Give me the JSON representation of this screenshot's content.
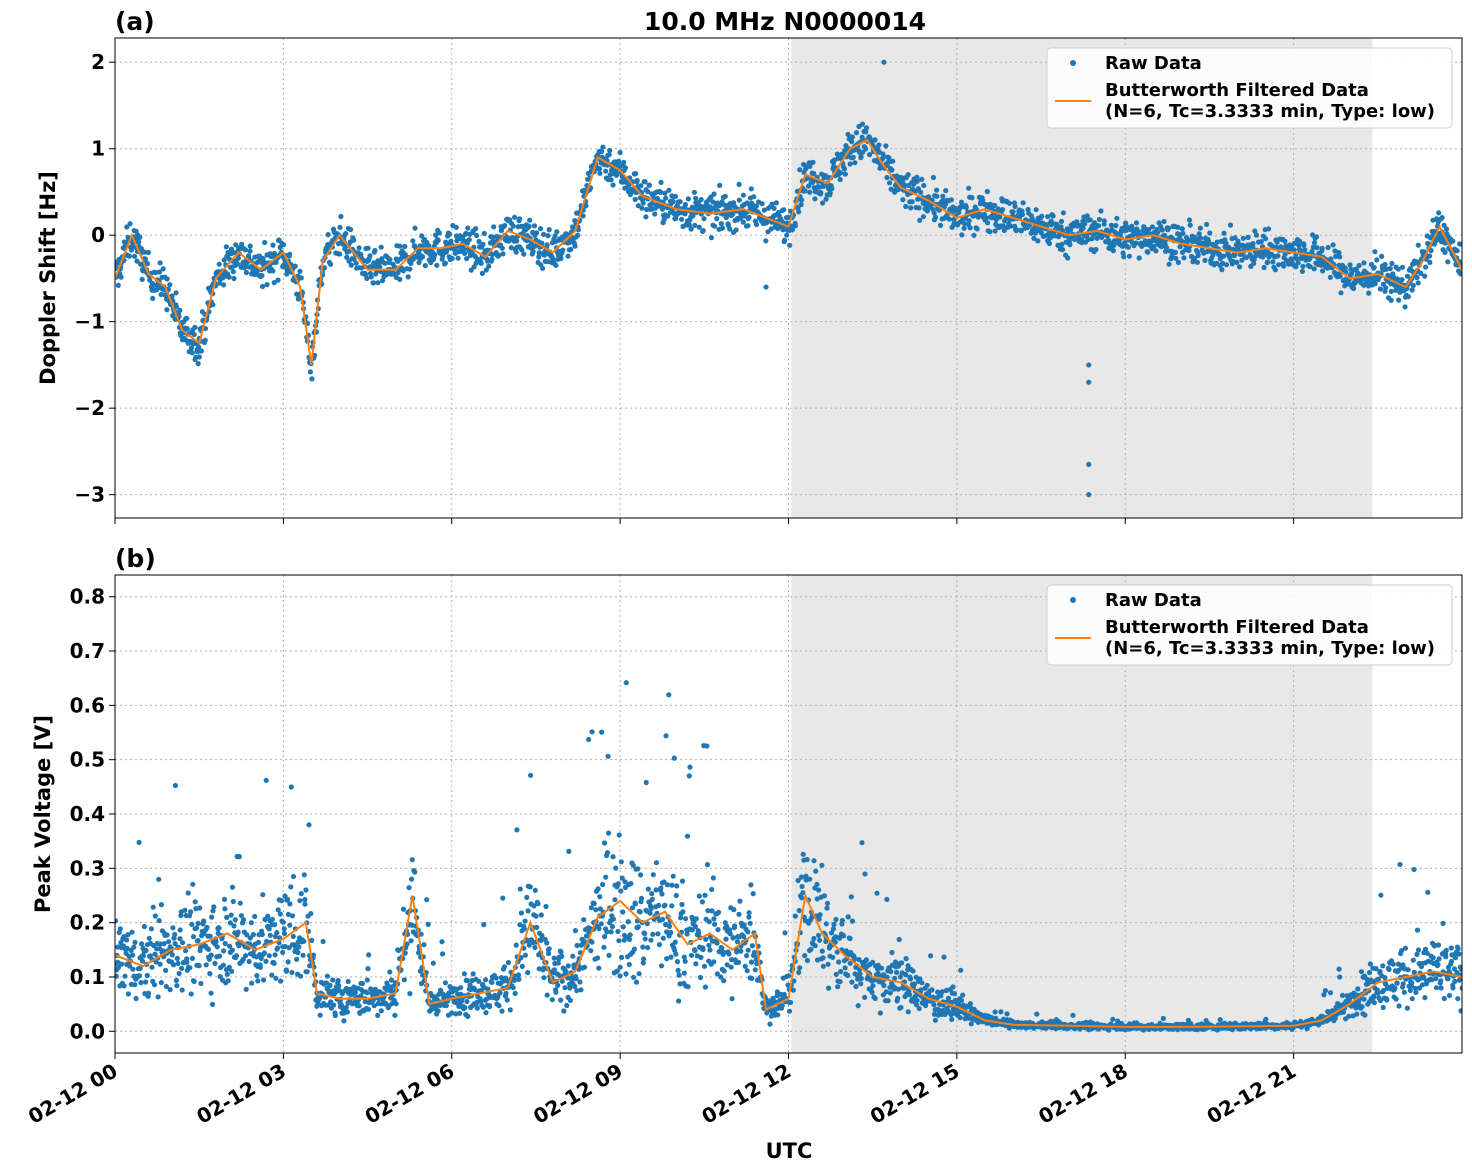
{
  "title": "10.0 MHz N0000014",
  "xlabel": "UTC",
  "colors": {
    "raw": "#1f77b4",
    "filtered": "#ff7f0e",
    "shade": "#e8e8e8"
  },
  "legend": {
    "raw_label": "Raw Data",
    "filtered_label_line1": "Butterworth Filtered Data",
    "filtered_label_line2": "(N=6, Tc=3.3333 min, Type: low)",
    "placement": "upper-right"
  },
  "chart_data": [
    {
      "panel_label": "(a)",
      "type": "scatter",
      "ylabel": "Doppler Shift [Hz]",
      "xlim_hours": [
        0,
        24
      ],
      "ylim": [
        -3.27,
        2.28
      ],
      "yticks": [
        2,
        1,
        0,
        -1,
        -2,
        -3
      ],
      "ytick_labels": [
        "2",
        "1",
        "0",
        "−1",
        "−2",
        "−3"
      ],
      "shaded_region_hours": [
        12.05,
        22.4
      ],
      "grid": true,
      "series": [
        {
          "name": "Raw Data",
          "kind": "points"
        },
        {
          "name": "Butterworth Filtered Data",
          "kind": "line",
          "x_hours": [
            0,
            0.3,
            0.6,
            0.9,
            1.2,
            1.5,
            1.8,
            2.2,
            2.6,
            3.0,
            3.3,
            3.5,
            3.7,
            4.0,
            4.5,
            5.0,
            5.4,
            5.8,
            6.2,
            6.6,
            7.0,
            7.4,
            7.8,
            8.2,
            8.6,
            9.0,
            9.4,
            10.0,
            10.6,
            11.2,
            11.6,
            12.0,
            12.3,
            12.7,
            13.1,
            13.4,
            13.7,
            14.0,
            14.5,
            15.0,
            15.5,
            16.0,
            16.5,
            17.0,
            17.5,
            18.0,
            18.5,
            19.0,
            19.5,
            20.0,
            20.5,
            21.0,
            21.5,
            22.0,
            22.5,
            23.0,
            23.3,
            23.6,
            24.0
          ],
          "values": [
            -0.5,
            0.0,
            -0.45,
            -0.6,
            -1.1,
            -1.25,
            -0.5,
            -0.2,
            -0.4,
            -0.2,
            -0.6,
            -1.5,
            -0.3,
            0.0,
            -0.4,
            -0.4,
            -0.15,
            -0.15,
            -0.1,
            -0.25,
            0.05,
            -0.05,
            -0.2,
            0.05,
            0.9,
            0.75,
            0.45,
            0.3,
            0.25,
            0.3,
            0.2,
            0.1,
            0.7,
            0.6,
            1.0,
            1.1,
            0.8,
            0.55,
            0.4,
            0.2,
            0.3,
            0.2,
            0.1,
            0.0,
            0.05,
            -0.05,
            0.0,
            -0.1,
            -0.15,
            -0.2,
            -0.15,
            -0.2,
            -0.25,
            -0.5,
            -0.45,
            -0.6,
            -0.3,
            0.1,
            -0.4
          ]
        }
      ]
    },
    {
      "panel_label": "(b)",
      "type": "scatter",
      "ylabel": "Peak Voltage [V]",
      "xlabel": "UTC",
      "xlim_hours": [
        0,
        24
      ],
      "ylim": [
        -0.04,
        0.84
      ],
      "yticks": [
        0.0,
        0.1,
        0.2,
        0.3,
        0.4,
        0.5,
        0.6,
        0.7,
        0.8
      ],
      "ytick_labels": [
        "0.0",
        "0.1",
        "0.2",
        "0.3",
        "0.4",
        "0.5",
        "0.6",
        "0.7",
        "0.8"
      ],
      "xticks_hours": [
        0,
        3,
        6,
        9,
        12,
        15,
        18,
        21
      ],
      "xtick_labels": [
        "02-12 00",
        "02-12 03",
        "02-12 06",
        "02-12 09",
        "02-12 12",
        "02-12 15",
        "02-12 18",
        "02-12 21"
      ],
      "shaded_region_hours": [
        12.05,
        22.4
      ],
      "grid": true,
      "series": [
        {
          "name": "Raw Data",
          "kind": "points"
        },
        {
          "name": "Butterworth Filtered Data",
          "kind": "line",
          "x_hours": [
            0,
            0.5,
            1.0,
            1.5,
            2.0,
            2.5,
            3.0,
            3.4,
            3.6,
            4.0,
            4.5,
            5.0,
            5.3,
            5.6,
            6.0,
            6.5,
            7.0,
            7.4,
            7.8,
            8.2,
            8.6,
            9.0,
            9.4,
            9.8,
            10.2,
            10.6,
            11.0,
            11.4,
            11.6,
            12.0,
            12.3,
            12.6,
            13.0,
            13.5,
            14.0,
            14.5,
            15.0,
            15.5,
            16.0,
            17.0,
            18.0,
            19.0,
            20.0,
            21.0,
            21.5,
            22.0,
            22.5,
            23.0,
            23.5,
            24.0
          ],
          "values": [
            0.14,
            0.12,
            0.15,
            0.16,
            0.18,
            0.15,
            0.17,
            0.2,
            0.07,
            0.06,
            0.06,
            0.07,
            0.25,
            0.05,
            0.06,
            0.07,
            0.08,
            0.2,
            0.09,
            0.11,
            0.21,
            0.24,
            0.2,
            0.22,
            0.16,
            0.18,
            0.15,
            0.18,
            0.04,
            0.06,
            0.25,
            0.18,
            0.14,
            0.1,
            0.09,
            0.06,
            0.045,
            0.02,
            0.012,
            0.01,
            0.008,
            0.008,
            0.009,
            0.01,
            0.02,
            0.05,
            0.09,
            0.1,
            0.11,
            0.1
          ]
        }
      ]
    }
  ]
}
